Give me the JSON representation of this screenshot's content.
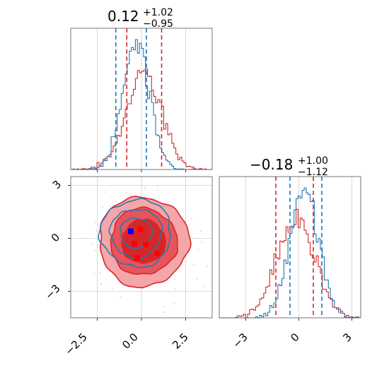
{
  "chart_data": [
    {
      "type": "histogram",
      "panel": "x-marginal",
      "title": {
        "median": "0.12",
        "plus": "+1.02",
        "minus": "−0.95"
      },
      "xlim": [
        -4,
        4
      ],
      "grid": true,
      "series": [
        {
          "color": "#d62728",
          "mean": 0.12,
          "sd": 0.99,
          "quantiles": [
            -0.83,
            1.14
          ]
        },
        {
          "color": "#1f77b4",
          "mean": -0.3,
          "sd": 0.75,
          "quantiles": [
            -1.45,
            0.28
          ]
        }
      ]
    },
    {
      "type": "histogram",
      "panel": "y-marginal",
      "title": {
        "median": "−0.18",
        "plus": "+1.00",
        "minus": "−1.12"
      },
      "xlim": [
        -4.5,
        3.5
      ],
      "xticks": [
        "−3",
        "0",
        "3"
      ],
      "grid": true,
      "series": [
        {
          "color": "#d62728",
          "mean": -0.18,
          "sd": 1.06,
          "quantiles": [
            -1.3,
            0.82
          ]
        },
        {
          "color": "#1f77b4",
          "mean": 0.3,
          "sd": 0.8,
          "quantiles": [
            -0.5,
            1.3
          ]
        }
      ]
    },
    {
      "type": "contour",
      "panel": "joint",
      "xlim": [
        -4,
        4
      ],
      "ylim": [
        -4.5,
        3.5
      ],
      "xticks": [
        "−2.5",
        "0.0",
        "2.5"
      ],
      "yticks": [
        "3",
        "0",
        "−3"
      ],
      "grid": true,
      "series": [
        {
          "color": "#d62728",
          "fill": [
            "#f4a6a8",
            "#e8545b",
            "#d62728"
          ],
          "cx": 0.12,
          "cy": -0.18,
          "sx": 1.3,
          "sy": 1.3
        },
        {
          "color": "#1f77b4",
          "cx": -0.3,
          "cy": 0.3,
          "sx": 1.0,
          "sy": 1.0
        }
      ],
      "markers": [
        {
          "color": "#0000ff",
          "x": -0.6,
          "y": 0.4
        },
        {
          "color": "#ff0000",
          "x": -0.05,
          "y": 0.5
        },
        {
          "color": "#ff0000",
          "x": -0.4,
          "y": -0.3
        },
        {
          "color": "#ff0000",
          "x": 0.25,
          "y": -0.35
        },
        {
          "color": "#ff0000",
          "x": -0.25,
          "y": -1.1
        },
        {
          "color": "#ff0000",
          "x": 0.9,
          "y": -0.85
        }
      ]
    }
  ]
}
